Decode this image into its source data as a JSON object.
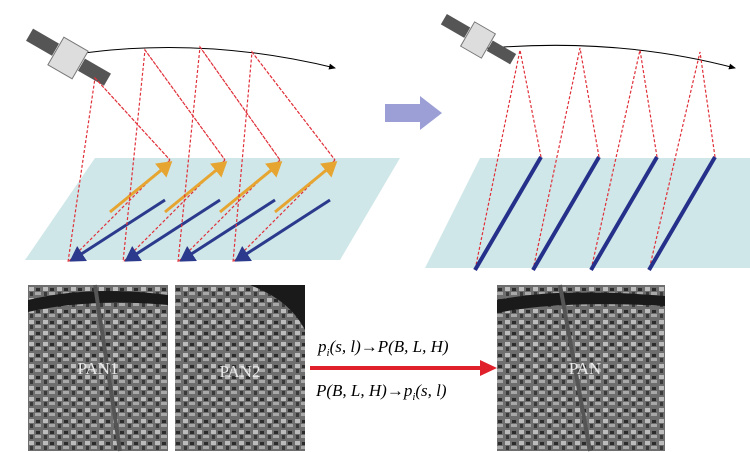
{
  "images": [
    {
      "label": "PAN1"
    },
    {
      "label": "PAN2"
    },
    {
      "label": "PAN"
    }
  ],
  "transforms": [
    {
      "p": "p",
      "sub": "i",
      "rest": "(s, l)→P(B, L, H)"
    },
    {
      "lead": "P(B, L, H)→",
      "p": "p",
      "sub": "i",
      "rest": "(s, l)"
    }
  ]
}
